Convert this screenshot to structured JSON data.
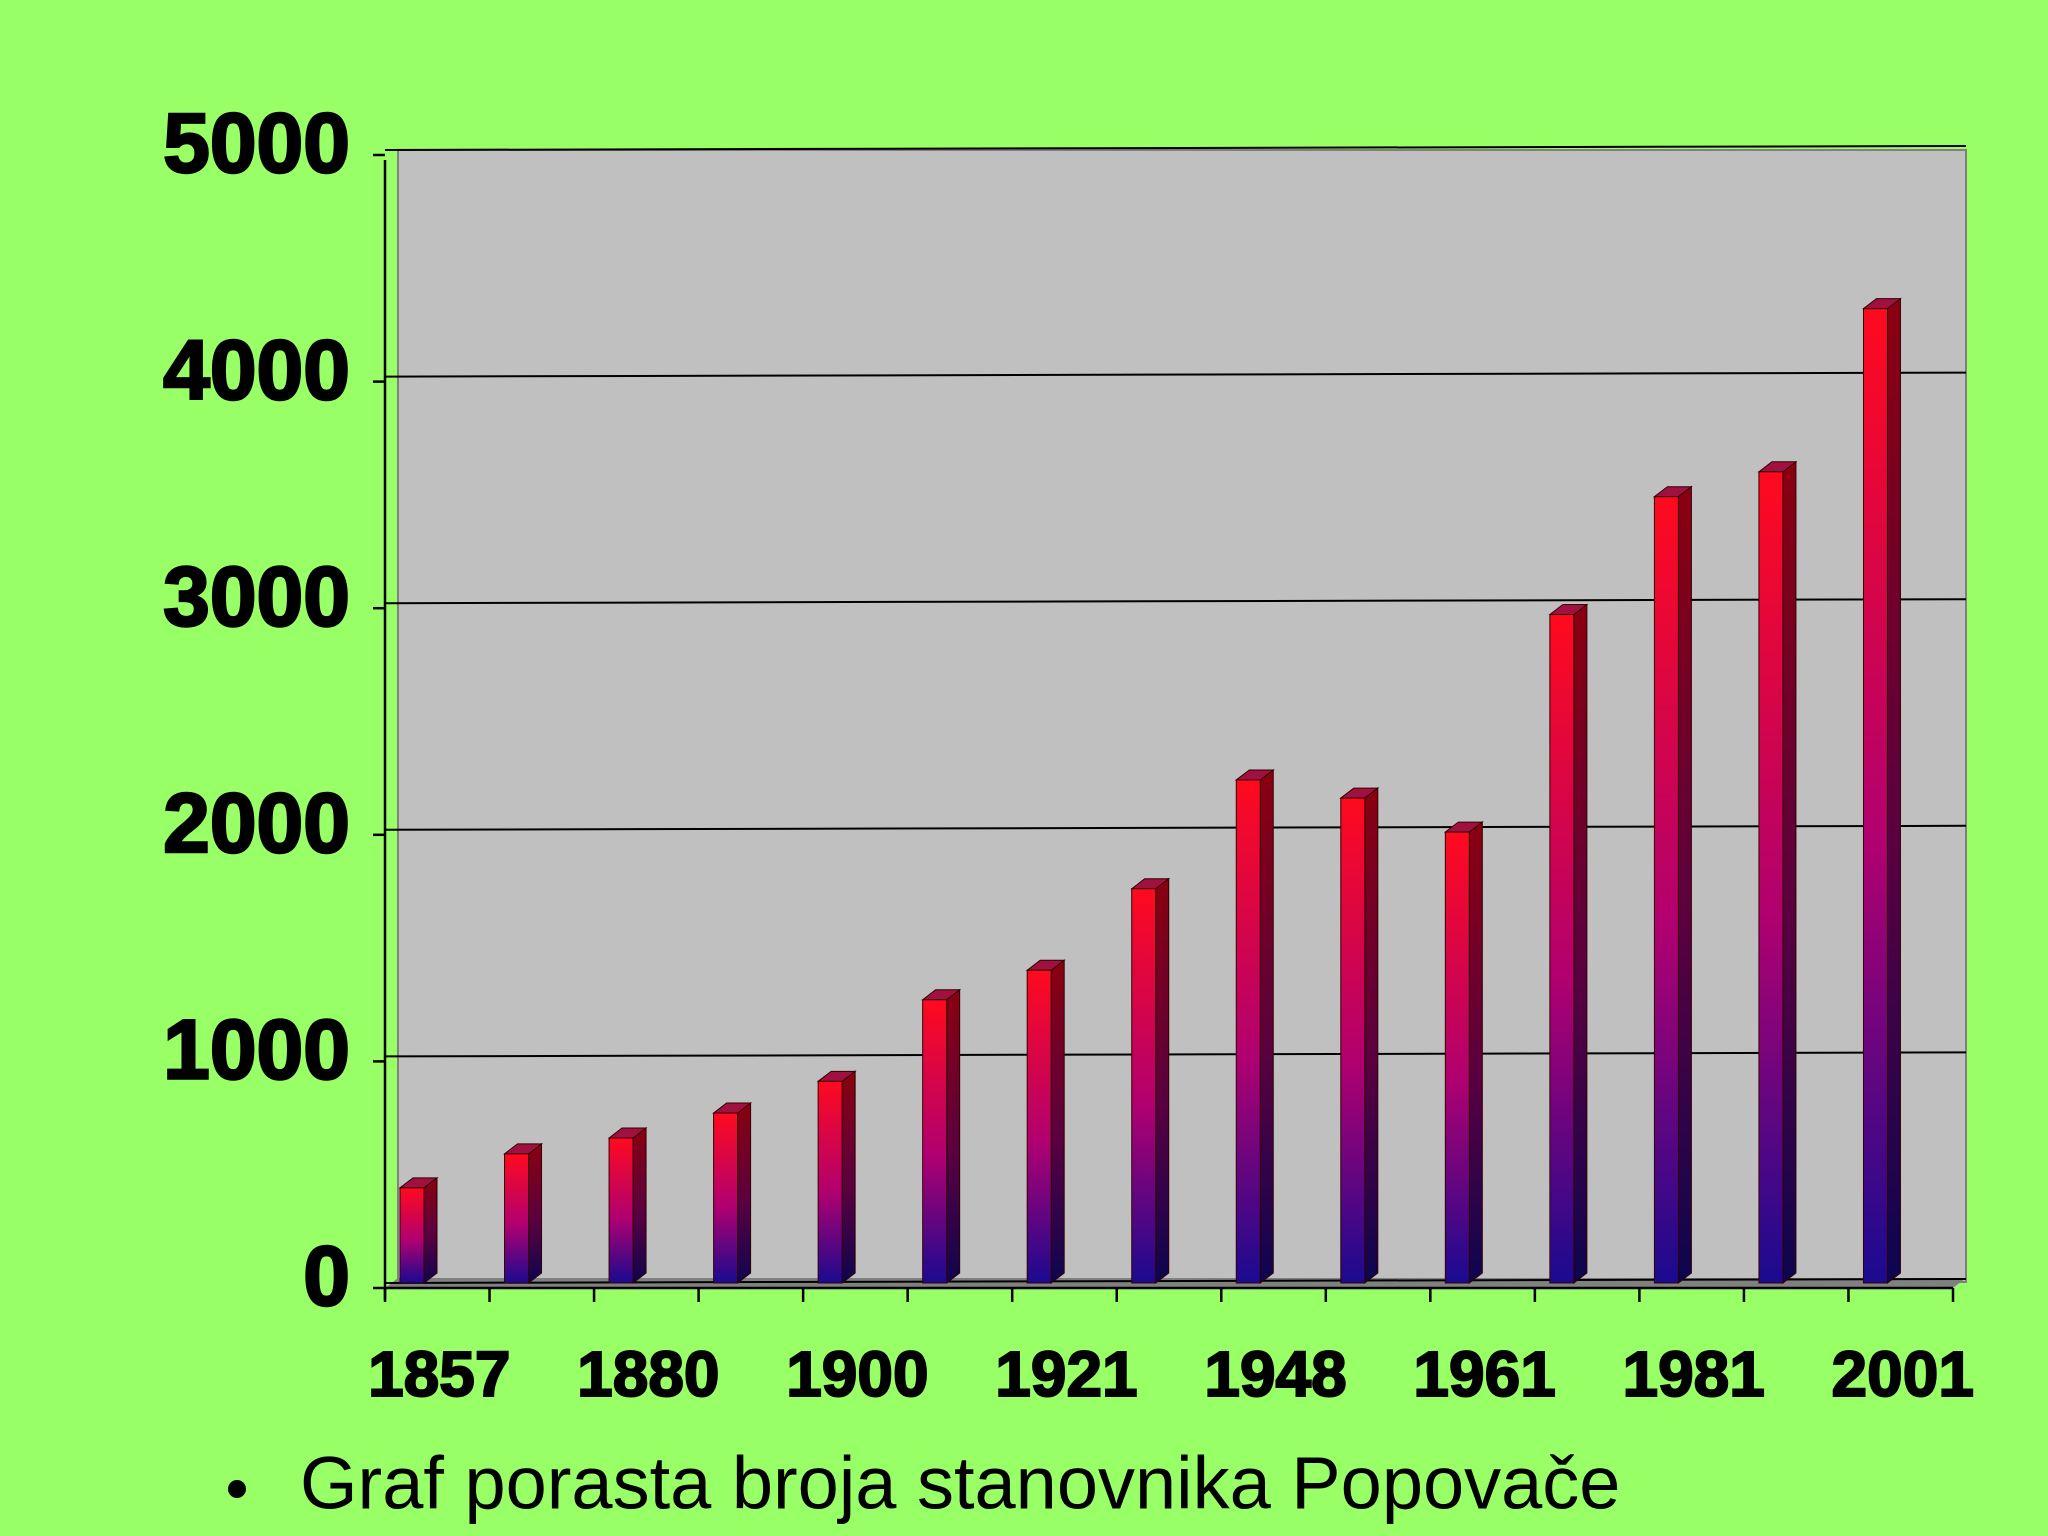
{
  "chart_data": {
    "type": "bar",
    "caption": "Graf porasta broja stanovnika Popovače",
    "categories": [
      "1857",
      null,
      "1880",
      null,
      "1900",
      null,
      "1921",
      null,
      "1948",
      null,
      "1961",
      null,
      "1981",
      null,
      "2001"
    ],
    "values": [
      420,
      570,
      640,
      750,
      890,
      1250,
      1380,
      1740,
      2220,
      2140,
      1990,
      2950,
      3470,
      3580,
      4300
    ],
    "ylim": [
      0,
      5000
    ],
    "yticks": [
      0,
      1000,
      2000,
      3000,
      4000,
      5000
    ],
    "grid": true,
    "background": "#99ff66",
    "plot_color": "#c0c0c0"
  }
}
